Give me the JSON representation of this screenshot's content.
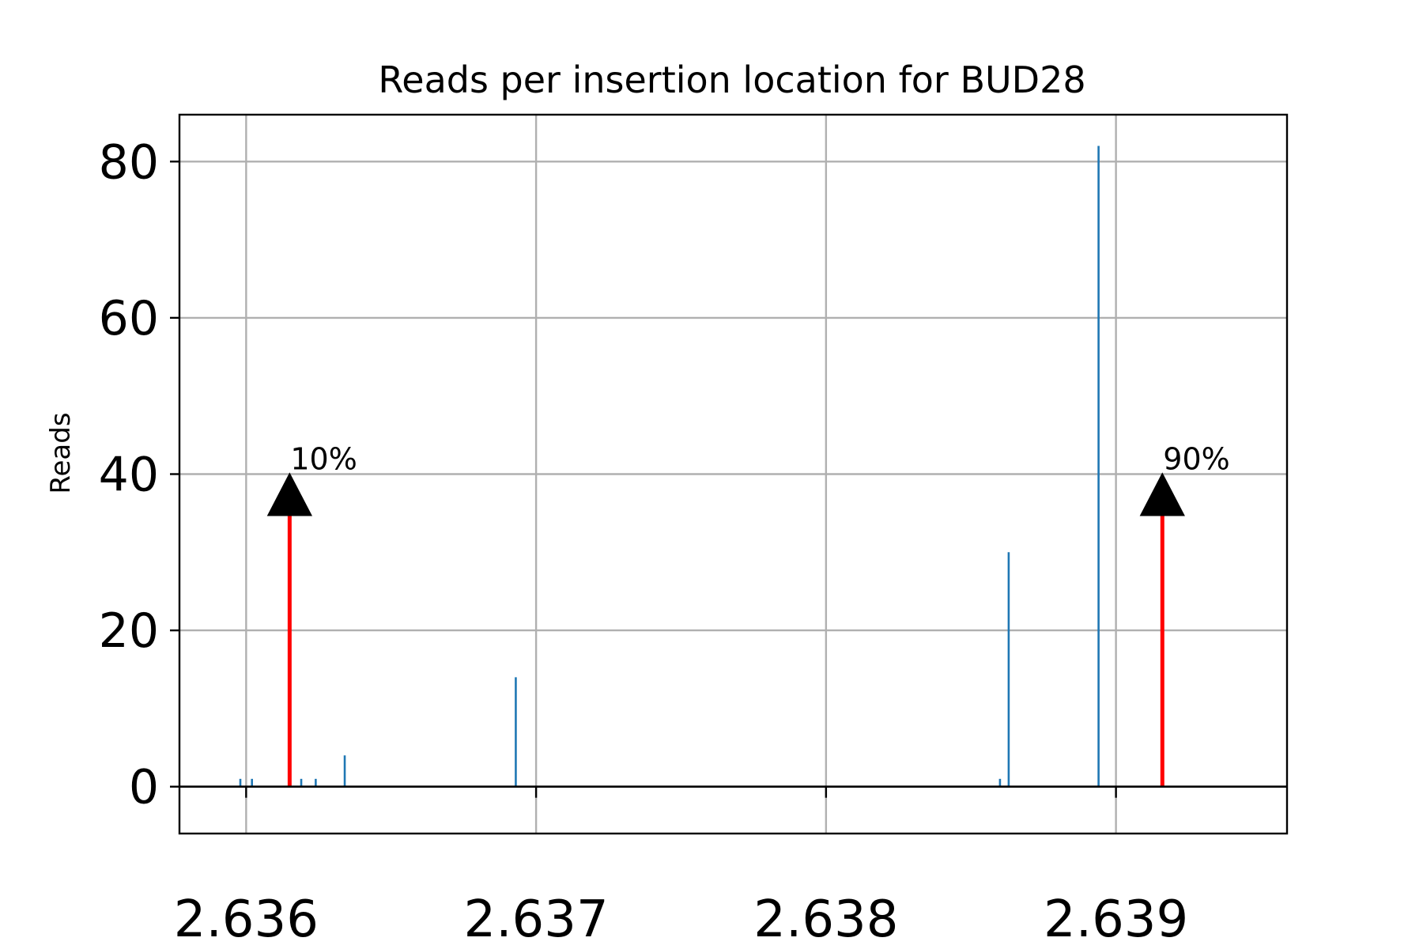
{
  "chart_data": {
    "type": "bar",
    "title": "Reads per insertion location for BUD28",
    "xlabel": "",
    "ylabel": "Reads",
    "xlim": [
      2.63577,
      2.63959
    ],
    "ylim": [
      -6,
      86
    ],
    "x_tick_values": [
      2.636,
      2.637,
      2.638,
      2.639
    ],
    "x_tick_labels": [
      "2.636",
      "2.637",
      "2.638",
      "2.639"
    ],
    "y_tick_values": [
      0,
      20,
      40,
      60,
      80
    ],
    "y_tick_labels": [
      "0",
      "20",
      "40",
      "60",
      "80"
    ],
    "grid": true,
    "bar_color": "#1f77b4",
    "points": [
      {
        "x": 2.63598,
        "y": 1
      },
      {
        "x": 2.63602,
        "y": 1
      },
      {
        "x": 2.63619,
        "y": 1
      },
      {
        "x": 2.63624,
        "y": 1
      },
      {
        "x": 2.63634,
        "y": 4
      },
      {
        "x": 2.63693,
        "y": 14
      },
      {
        "x": 2.6386,
        "y": 1
      },
      {
        "x": 2.63863,
        "y": 30
      },
      {
        "x": 2.63894,
        "y": 82
      }
    ],
    "annotations": [
      {
        "text": "10%",
        "x": 2.63615,
        "y": 40,
        "color": "#ff0000"
      },
      {
        "text": "90%",
        "x": 2.63916,
        "y": 40,
        "color": "#ff0000"
      }
    ]
  }
}
